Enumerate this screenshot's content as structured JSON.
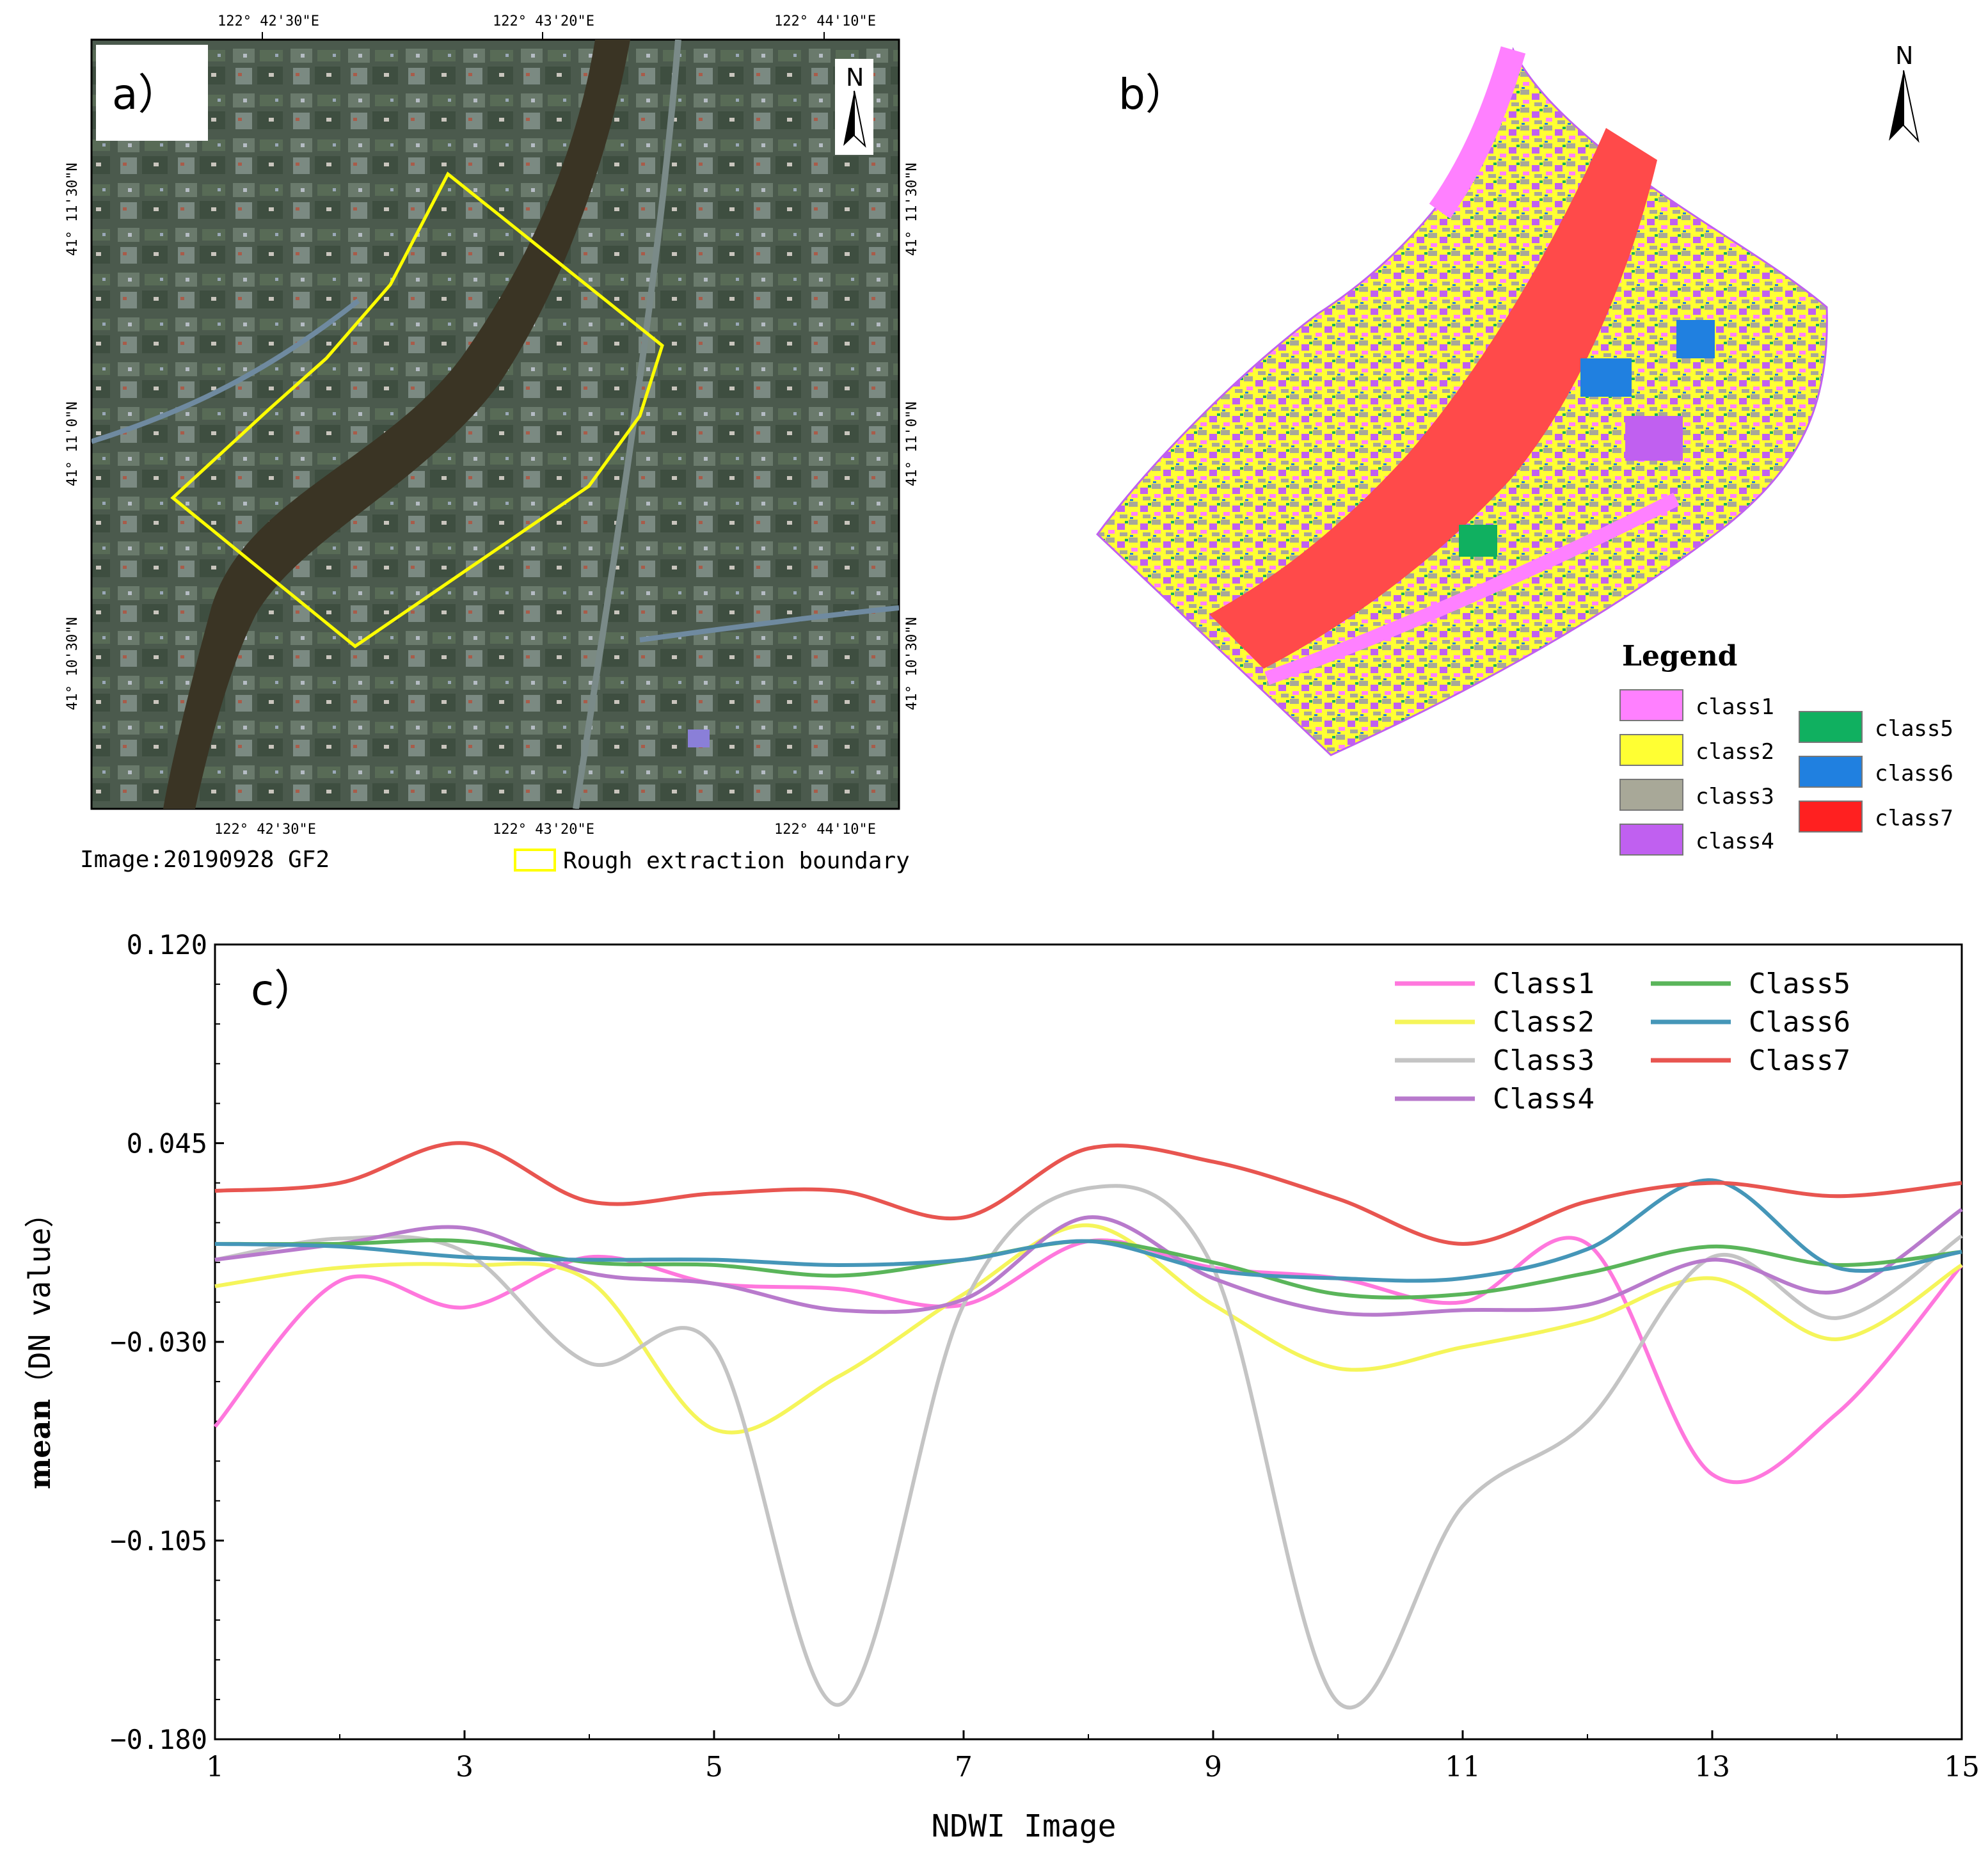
{
  "panel_a": {
    "label": "a）",
    "north": "N",
    "lon_ticks": [
      "122° 42'30\"E",
      "122° 43'20\"E",
      "122° 44'10\"E"
    ],
    "lat_ticks": [
      "41° 11'30\"N",
      "41° 11'0\"N",
      "41° 10'30\"N"
    ],
    "image_caption": "Image:20190928 GF2",
    "boundary_legend": "Rough extraction boundary",
    "boundary_color": "#ffff00"
  },
  "panel_b": {
    "label": "b）",
    "north": "N",
    "legend_title": "Legend",
    "classes": [
      {
        "name": "class1",
        "color": "#ff80ff"
      },
      {
        "name": "class2",
        "color": "#ffff33"
      },
      {
        "name": "class3",
        "color": "#a8a898"
      },
      {
        "name": "class4",
        "color": "#c060f0"
      },
      {
        "name": "class5",
        "color": "#10b060"
      },
      {
        "name": "class6",
        "color": "#2080e0"
      },
      {
        "name": "class7",
        "color": "#ff2020"
      }
    ]
  },
  "chart_data": {
    "type": "line",
    "panel_label": "c）",
    "xlabel": "NDWI Image",
    "ylabel_bold": "mean",
    "ylabel_rest": "（DN value）",
    "x": [
      1,
      2,
      3,
      4,
      5,
      6,
      7,
      8,
      9,
      10,
      11,
      12,
      13,
      14,
      15
    ],
    "x_ticks": [
      "1",
      "3",
      "5",
      "7",
      "9",
      "11",
      "13",
      "15"
    ],
    "x_tick_values": [
      1,
      3,
      5,
      7,
      9,
      11,
      13,
      15
    ],
    "xlim": [
      1,
      15
    ],
    "y_ticks": [
      "0.120",
      "0.045",
      "−0.030",
      "−0.105",
      "−0.180"
    ],
    "y_tick_values": [
      0.12,
      0.045,
      -0.03,
      -0.105,
      -0.18
    ],
    "ylim": [
      -0.18,
      0.12
    ],
    "series": [
      {
        "name": "Class1",
        "color": "#ff77dd",
        "values": [
          -0.062,
          -0.007,
          -0.017,
          0.002,
          -0.008,
          -0.01,
          -0.016,
          0.008,
          -0.002,
          -0.006,
          -0.015,
          0.007,
          -0.08,
          -0.057,
          -0.001
        ]
      },
      {
        "name": "Class2",
        "color": "#f5f55a",
        "values": [
          -0.009,
          -0.002,
          -0.001,
          -0.007,
          -0.063,
          -0.043,
          -0.012,
          0.014,
          -0.016,
          -0.04,
          -0.032,
          -0.022,
          -0.006,
          -0.029,
          -0.001
        ]
      },
      {
        "name": "Class3",
        "color": "#c4c4c4",
        "values": [
          0.001,
          0.009,
          0.004,
          -0.038,
          -0.032,
          -0.167,
          -0.016,
          0.028,
          -0.002,
          -0.166,
          -0.092,
          -0.06,
          0.002,
          -0.021,
          0.01
        ]
      },
      {
        "name": "Class4",
        "color": "#b87acc",
        "values": [
          0.001,
          0.007,
          0.013,
          -0.004,
          -0.008,
          -0.018,
          -0.014,
          0.017,
          -0.006,
          -0.019,
          -0.018,
          -0.016,
          0.001,
          -0.011,
          0.02
        ]
      },
      {
        "name": "Class5",
        "color": "#5ab55a",
        "values": [
          0.007,
          0.007,
          0.008,
          0.0,
          -0.001,
          -0.005,
          0.001,
          0.008,
          0.0,
          -0.012,
          -0.012,
          -0.004,
          0.006,
          -0.001,
          0.004
        ]
      },
      {
        "name": "Class6",
        "color": "#4596b8",
        "values": [
          0.007,
          0.006,
          0.002,
          0.001,
          0.001,
          -0.001,
          0.001,
          0.008,
          -0.003,
          -0.006,
          -0.006,
          0.005,
          0.031,
          -0.002,
          0.004
        ]
      },
      {
        "name": "Class7",
        "color": "#e85550",
        "values": [
          0.027,
          0.03,
          0.045,
          0.023,
          0.026,
          0.027,
          0.017,
          0.043,
          0.038,
          0.024,
          0.007,
          0.023,
          0.03,
          0.025,
          0.03
        ]
      }
    ]
  }
}
